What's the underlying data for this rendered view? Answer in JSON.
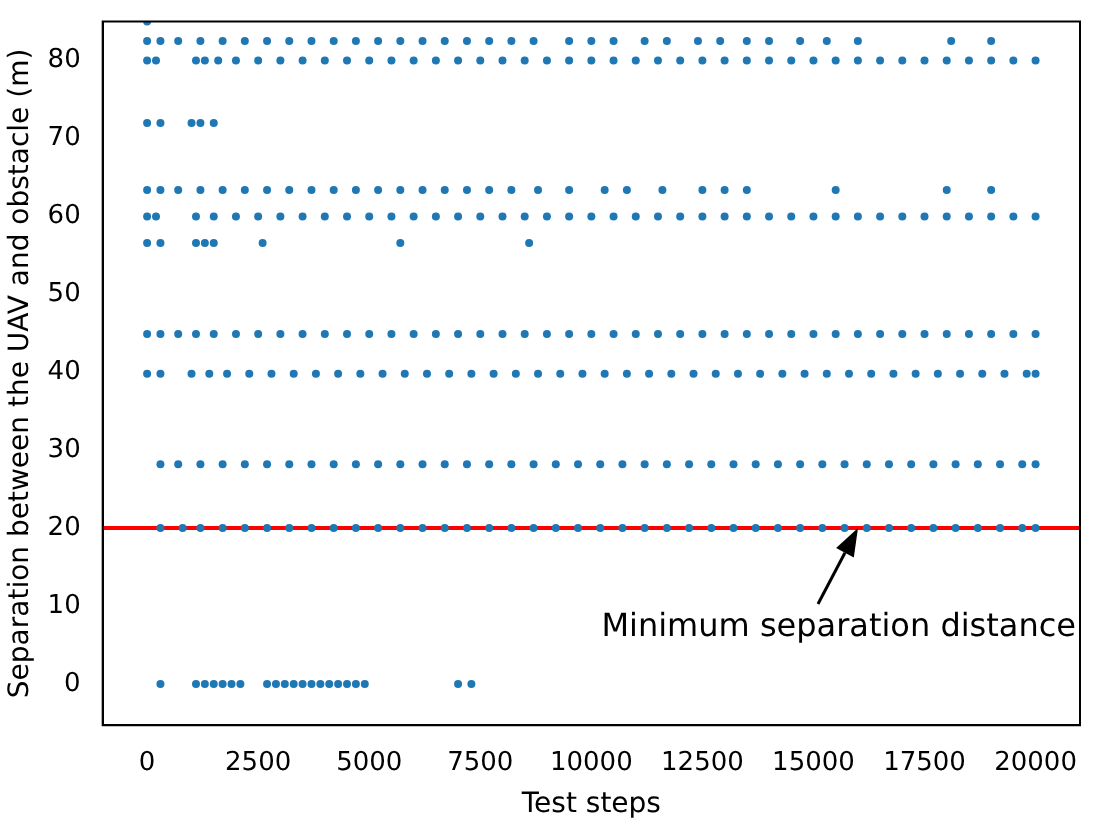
{
  "chart_data": {
    "type": "scatter",
    "xlabel": "Test steps",
    "ylabel": "Separation between the UAV and obstacle (m)",
    "xlim": [
      -1000,
      21000
    ],
    "ylim": [
      -5.3,
      85
    ],
    "xticks": [
      0,
      2500,
      5000,
      7500,
      10000,
      12500,
      15000,
      17500,
      20000
    ],
    "yticks": [
      0,
      10,
      20,
      30,
      40,
      50,
      60,
      70,
      80
    ],
    "grid": false,
    "marker": "circle",
    "legend": false,
    "ref_lines": [
      {
        "axis": "y",
        "value": 20,
        "color": "#ff0000"
      }
    ],
    "annotations": [
      {
        "text": "Minimum separation distance",
        "x": 16000,
        "y": 20
      }
    ],
    "series": [
      {
        "color": "#1f77b4",
        "x": [
          0
        ],
        "values": [
          85
        ]
      },
      {
        "color": "#1f77b4",
        "x": [
          0,
          300,
          700,
          1200,
          1700,
          2200,
          2700,
          3200,
          3700,
          4200,
          4700,
          5200,
          5700,
          6200,
          6700,
          7200,
          7700,
          8200,
          8700,
          9500,
          10000,
          10500,
          11200,
          11700,
          12400,
          12900,
          13500,
          14000,
          14700,
          15300,
          16000,
          18100,
          19000
        ],
        "values": [
          82.5,
          82.5,
          82.5,
          82.5,
          82.5,
          82.5,
          82.5,
          82.5,
          82.5,
          82.5,
          82.5,
          82.5,
          82.5,
          82.5,
          82.5,
          82.5,
          82.5,
          82.5,
          82.5,
          82.5,
          82.5,
          82.5,
          82.5,
          82.5,
          82.5,
          82.5,
          82.5,
          82.5,
          82.5,
          82.5,
          82.5,
          82.5,
          82.5
        ]
      },
      {
        "color": "#1f77b4",
        "x": [
          0,
          200,
          1100,
          1300,
          1600,
          2000,
          2500,
          3000,
          3500,
          4000,
          4500,
          5000,
          5500,
          6000,
          6500,
          7000,
          7500,
          8000,
          8500,
          9000,
          9500,
          10000,
          10500,
          11000,
          11500,
          12000,
          12500,
          13000,
          13500,
          14000,
          14500,
          15000,
          15500,
          16000,
          16500,
          17000,
          17500,
          18000,
          18500,
          19000,
          19500,
          20000
        ],
        "values": [
          80,
          80,
          80,
          80,
          80,
          80,
          80,
          80,
          80,
          80,
          80,
          80,
          80,
          80,
          80,
          80,
          80,
          80,
          80,
          80,
          80,
          80,
          80,
          80,
          80,
          80,
          80,
          80,
          80,
          80,
          80,
          80,
          80,
          80,
          80,
          80,
          80,
          80,
          80,
          80,
          80,
          80
        ]
      },
      {
        "color": "#1f77b4",
        "x": [
          0,
          300,
          1000,
          1200,
          1500
        ],
        "values": [
          72,
          72,
          72,
          72,
          72
        ]
      },
      {
        "color": "#1f77b4",
        "x": [
          0,
          300,
          700,
          1200,
          1700,
          2200,
          2700,
          3200,
          3700,
          4200,
          4700,
          5200,
          5700,
          6200,
          6700,
          7200,
          7700,
          8200,
          8800,
          9500,
          10300,
          10800,
          11600,
          12500,
          13000,
          13500,
          15500,
          18000,
          19000
        ],
        "values": [
          63.4,
          63.4,
          63.4,
          63.4,
          63.4,
          63.4,
          63.4,
          63.4,
          63.4,
          63.4,
          63.4,
          63.4,
          63.4,
          63.4,
          63.4,
          63.4,
          63.4,
          63.4,
          63.4,
          63.4,
          63.4,
          63.4,
          63.4,
          63.4,
          63.4,
          63.4,
          63.4,
          63.4,
          63.4
        ]
      },
      {
        "color": "#1f77b4",
        "x": [
          0,
          200,
          1100,
          1500,
          2000,
          2500,
          3000,
          3500,
          4000,
          4500,
          5000,
          5500,
          6000,
          6500,
          7000,
          7500,
          8000,
          8500,
          9000,
          9500,
          10000,
          10500,
          11000,
          11500,
          12000,
          12500,
          13000,
          13500,
          14000,
          14500,
          15000,
          15500,
          16000,
          16500,
          17000,
          17500,
          18000,
          18500,
          19000,
          19500,
          20000
        ],
        "values": [
          60,
          60,
          60,
          60,
          60,
          60,
          60,
          60,
          60,
          60,
          60,
          60,
          60,
          60,
          60,
          60,
          60,
          60,
          60,
          60,
          60,
          60,
          60,
          60,
          60,
          60,
          60,
          60,
          60,
          60,
          60,
          60,
          60,
          60,
          60,
          60,
          60,
          60,
          60,
          60,
          60
        ]
      },
      {
        "color": "#1f77b4",
        "x": [
          0,
          300,
          1100,
          1300,
          1500,
          2600,
          5700,
          8600
        ],
        "values": [
          56.6,
          56.6,
          56.6,
          56.6,
          56.6,
          56.6,
          56.6,
          56.6
        ]
      },
      {
        "color": "#1f77b4",
        "x": [
          0,
          300,
          700,
          1100,
          1500,
          2000,
          2500,
          3000,
          3500,
          4000,
          4500,
          5000,
          5500,
          6000,
          6500,
          7000,
          7500,
          8000,
          8500,
          9000,
          9500,
          10000,
          10500,
          11000,
          11500,
          12000,
          12500,
          13000,
          13500,
          14000,
          14500,
          15000,
          15500,
          16000,
          16500,
          17000,
          17500,
          18000,
          18500,
          19000,
          19500,
          20000
        ],
        "values": [
          44.9,
          44.9,
          44.9,
          44.9,
          44.9,
          44.9,
          44.9,
          44.9,
          44.9,
          44.9,
          44.9,
          44.9,
          44.9,
          44.9,
          44.9,
          44.9,
          44.9,
          44.9,
          44.9,
          44.9,
          44.9,
          44.9,
          44.9,
          44.9,
          44.9,
          44.9,
          44.9,
          44.9,
          44.9,
          44.9,
          44.9,
          44.9,
          44.9,
          44.9,
          44.9,
          44.9,
          44.9,
          44.9,
          44.9,
          44.9,
          44.9,
          44.9
        ]
      },
      {
        "color": "#1f77b4",
        "x": [
          0,
          300,
          1000,
          1400,
          1800,
          2300,
          2800,
          3300,
          3800,
          4300,
          4800,
          5300,
          5800,
          6300,
          6800,
          7300,
          7800,
          8300,
          8800,
          9300,
          9800,
          10300,
          10800,
          11300,
          11800,
          12300,
          12800,
          13300,
          13800,
          14300,
          14800,
          15300,
          15800,
          16300,
          16800,
          17300,
          17800,
          18300,
          18800,
          19300,
          19800,
          20000
        ],
        "values": [
          39.8,
          39.8,
          39.8,
          39.8,
          39.8,
          39.8,
          39.8,
          39.8,
          39.8,
          39.8,
          39.8,
          39.8,
          39.8,
          39.8,
          39.8,
          39.8,
          39.8,
          39.8,
          39.8,
          39.8,
          39.8,
          39.8,
          39.8,
          39.8,
          39.8,
          39.8,
          39.8,
          39.8,
          39.8,
          39.8,
          39.8,
          39.8,
          39.8,
          39.8,
          39.8,
          39.8,
          39.8,
          39.8,
          39.8,
          39.8,
          39.8,
          39.8
        ]
      },
      {
        "color": "#1f77b4",
        "x": [
          300,
          700,
          1200,
          1700,
          2200,
          2700,
          3200,
          3700,
          4200,
          4700,
          5200,
          5700,
          6200,
          6700,
          7200,
          7700,
          8200,
          8700,
          9200,
          9700,
          10200,
          10700,
          11200,
          11700,
          12200,
          12700,
          13200,
          13700,
          14200,
          14700,
          15200,
          15700,
          16200,
          16700,
          17200,
          17700,
          18200,
          18700,
          19200,
          19700,
          20000
        ],
        "values": [
          28.2,
          28.2,
          28.2,
          28.2,
          28.2,
          28.2,
          28.2,
          28.2,
          28.2,
          28.2,
          28.2,
          28.2,
          28.2,
          28.2,
          28.2,
          28.2,
          28.2,
          28.2,
          28.2,
          28.2,
          28.2,
          28.2,
          28.2,
          28.2,
          28.2,
          28.2,
          28.2,
          28.2,
          28.2,
          28.2,
          28.2,
          28.2,
          28.2,
          28.2,
          28.2,
          28.2,
          28.2,
          28.2,
          28.2,
          28.2,
          28.2
        ]
      },
      {
        "color": "#1f77b4",
        "x": [
          300,
          800,
          1200,
          1700,
          2200,
          2700,
          3200,
          3700,
          4200,
          4700,
          5200,
          5700,
          6200,
          6700,
          7200,
          7700,
          8200,
          8700,
          9200,
          9700,
          10200,
          10700,
          11200,
          11700,
          12200,
          12700,
          13200,
          13700,
          14200,
          14700,
          15200,
          15700,
          16200,
          16700,
          17200,
          17700,
          18200,
          18700,
          19200,
          19700,
          20000
        ],
        "values": [
          20,
          20,
          20,
          20,
          20,
          20,
          20,
          20,
          20,
          20,
          20,
          20,
          20,
          20,
          20,
          20,
          20,
          20,
          20,
          20,
          20,
          20,
          20,
          20,
          20,
          20,
          20,
          20,
          20,
          20,
          20,
          20,
          20,
          20,
          20,
          20,
          20,
          20,
          20,
          20,
          20
        ]
      },
      {
        "color": "#1f77b4",
        "x": [
          300,
          1100,
          1300,
          1500,
          1700,
          1900,
          2100,
          2700,
          2900,
          3100,
          3300,
          3500,
          3700,
          3900,
          4100,
          4300,
          4500,
          4700,
          4900,
          7000,
          7300
        ],
        "values": [
          0,
          0,
          0,
          0,
          0,
          0,
          0,
          0,
          0,
          0,
          0,
          0,
          0,
          0,
          0,
          0,
          0,
          0,
          0,
          0,
          0
        ]
      }
    ]
  }
}
